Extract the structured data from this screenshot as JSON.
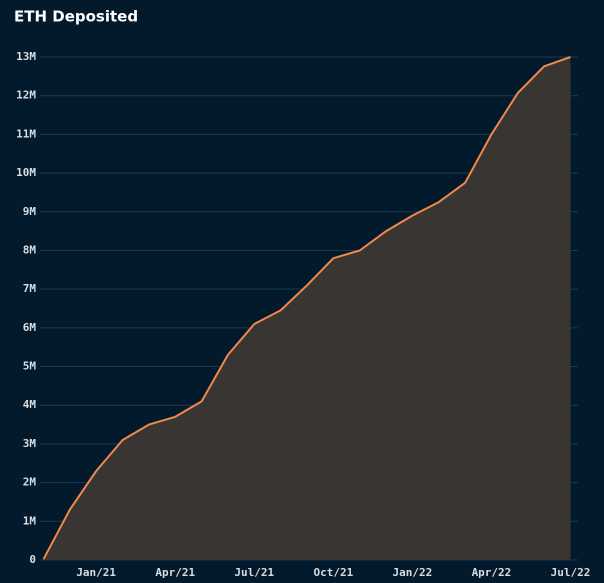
{
  "chart_data": {
    "type": "area",
    "title": "ETH Deposited",
    "x": [
      "2020-11",
      "2020-12",
      "2021-01",
      "2021-02",
      "2021-03",
      "2021-04",
      "2021-05",
      "2021-06",
      "2021-07",
      "2021-08",
      "2021-09",
      "2021-10",
      "2021-11",
      "2021-12",
      "2022-01",
      "2022-02",
      "2022-03",
      "2022-04",
      "2022-05",
      "2022-06",
      "2022-07"
    ],
    "series": [
      {
        "name": "ETH Deposited",
        "color": "#f0894a",
        "fill": "#393532",
        "values": [
          0.02,
          1.3,
          2.3,
          3.1,
          3.5,
          3.7,
          4.1,
          5.3,
          6.1,
          6.45,
          7.1,
          7.8,
          8.0,
          8.5,
          8.9,
          9.25,
          9.75,
          11.0,
          12.07,
          12.76,
          13.0
        ]
      }
    ],
    "xlim": [
      "2020-11",
      "2022-07"
    ],
    "xticks": [
      {
        "value": "2021-01",
        "label": "Jan/21"
      },
      {
        "value": "2021-04",
        "label": "Apr/21"
      },
      {
        "value": "2021-07",
        "label": "Jul/21"
      },
      {
        "value": "2021-10",
        "label": "Oct/21"
      },
      {
        "value": "2022-01",
        "label": "Jan/22"
      },
      {
        "value": "2022-04",
        "label": "Apr/22"
      },
      {
        "value": "2022-07",
        "label": "Jul/22"
      }
    ],
    "ylim": [
      0,
      13
    ],
    "yticks": [
      0,
      {
        "value": 1,
        "label": "1M"
      },
      {
        "value": 2,
        "label": "2M"
      },
      {
        "value": 3,
        "label": "3M"
      },
      {
        "value": 4,
        "label": "4M"
      },
      {
        "value": 5,
        "label": "5M"
      },
      {
        "value": 6,
        "label": "6M"
      },
      {
        "value": 7,
        "label": "7M"
      },
      {
        "value": 8,
        "label": "8M"
      },
      {
        "value": 9,
        "label": "9M"
      },
      {
        "value": 10,
        "label": "10M"
      },
      {
        "value": 11,
        "label": "11M"
      },
      {
        "value": 12,
        "label": "12M"
      },
      {
        "value": 13,
        "label": "13M"
      }
    ],
    "grid": true
  }
}
